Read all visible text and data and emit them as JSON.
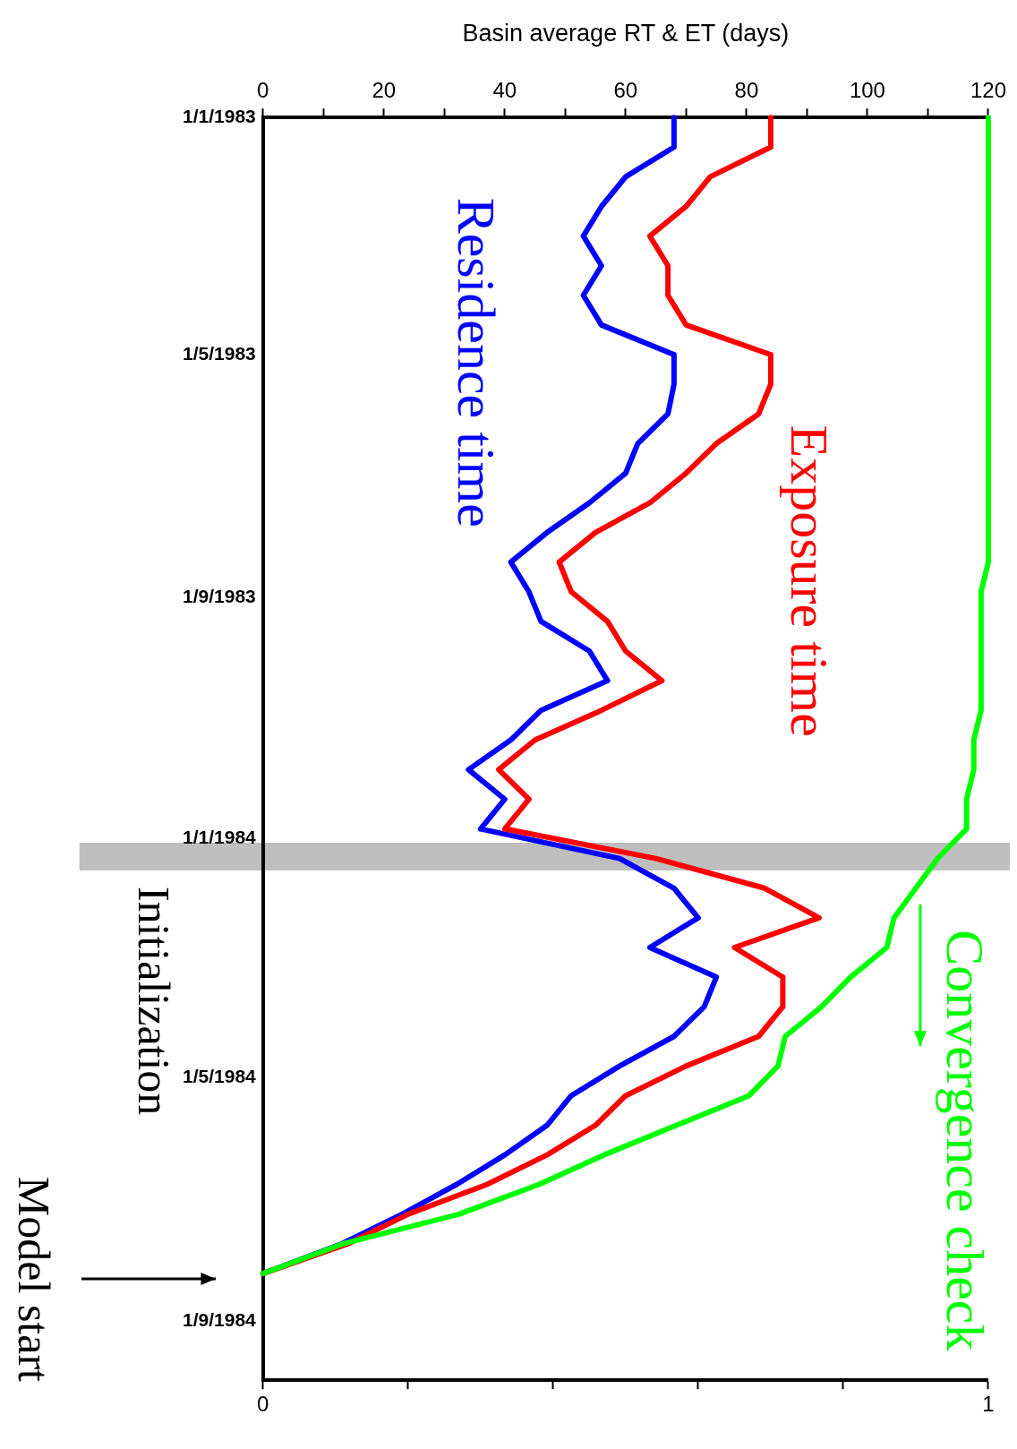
{
  "chart_data": {
    "type": "line",
    "orientation": "horizontal",
    "xlabel": "Basin average RT & ET (days)",
    "x": [
      "1983-01-01",
      "1983-01-16",
      "1983-01-31",
      "1983-02-15",
      "1983-03-02",
      "1983-03-17",
      "1983-04-01",
      "1983-04-16",
      "1983-05-01",
      "1983-05-16",
      "1983-05-31",
      "1983-06-15",
      "1983-06-30",
      "1983-07-15",
      "1983-07-30",
      "1983-08-14",
      "1983-08-29",
      "1983-09-13",
      "1983-09-28",
      "1983-10-13",
      "1983-10-28",
      "1983-11-12",
      "1983-11-27",
      "1983-12-12",
      "1983-12-27",
      "1984-01-11",
      "1984-01-26",
      "1984-02-10",
      "1984-02-25",
      "1984-03-11",
      "1984-03-26",
      "1984-04-10",
      "1984-04-25",
      "1984-05-10",
      "1984-05-25",
      "1984-06-09",
      "1984-06-24",
      "1984-07-09",
      "1984-07-24",
      "1984-08-08"
    ],
    "ylim": [
      "1984-10-01",
      "1983-01-01"
    ],
    "yticks": [
      {
        "value": "1983-01-01",
        "label": "1/1/1983"
      },
      {
        "value": "1983-05-01",
        "label": "1/5/1983"
      },
      {
        "value": "1983-09-01",
        "label": "1/9/1983"
      },
      {
        "value": "1984-01-01",
        "label": "1/1/1984"
      },
      {
        "value": "1984-05-01",
        "label": "1/5/1984"
      },
      {
        "value": "1984-09-01",
        "label": "1/9/1984"
      }
    ],
    "xlim": [
      0,
      120
    ],
    "xticks": [
      0,
      {
        "value": 10,
        "label": null
      },
      20,
      {
        "value": 30,
        "label": null
      },
      40,
      {
        "value": 50,
        "label": null
      },
      60,
      {
        "value": 70,
        "label": null
      },
      80,
      {
        "value": 90,
        "label": null
      },
      100,
      {
        "value": 110,
        "label": null
      },
      120
    ],
    "x2lim": [
      0,
      1
    ],
    "x2ticks": [
      0,
      {
        "value": 0.2,
        "label": null
      },
      {
        "value": 0.4,
        "label": null
      },
      {
        "value": 0.6,
        "label": null
      },
      {
        "value": 0.8,
        "label": null
      },
      1
    ],
    "series": [
      {
        "name": "Residence time",
        "color": "#0000ff",
        "values": [
          68,
          68,
          60,
          56,
          53,
          56,
          53,
          56,
          68,
          68,
          67,
          62,
          60,
          54,
          47,
          41,
          44,
          46,
          54,
          57,
          46,
          41,
          34,
          40,
          36,
          59,
          68,
          72,
          64,
          75,
          73,
          68,
          59,
          51,
          47,
          40,
          32,
          23,
          13,
          0
        ]
      },
      {
        "name": "Exposure time",
        "color": "#ff0000",
        "values": [
          84,
          84,
          74,
          70,
          64,
          67,
          67,
          70,
          84,
          84,
          82,
          75,
          70,
          64,
          55,
          49,
          51,
          57,
          60,
          66,
          56,
          45,
          39,
          44,
          40,
          65,
          83,
          92,
          78,
          86,
          86,
          82,
          70,
          60,
          55,
          47,
          37,
          24,
          14,
          0
        ]
      },
      {
        "name": "Convergence check",
        "color": "#00ff00",
        "axis": "x2",
        "values": [
          1,
          1,
          1,
          1,
          1,
          1,
          1,
          1,
          1,
          1,
          1,
          1,
          1,
          1,
          1,
          1,
          0.99,
          0.99,
          0.99,
          0.99,
          0.99,
          0.98,
          0.98,
          0.97,
          0.97,
          0.93,
          0.9,
          0.87,
          0.86,
          0.81,
          0.77,
          0.72,
          0.71,
          0.67,
          0.57,
          0.47,
          0.38,
          0.27,
          0.11,
          0
        ]
      }
    ],
    "bands": [
      {
        "axis": "y",
        "from": "1984-01-03",
        "to": "1984-01-17",
        "label": "Initialization",
        "color": "#bebebe"
      }
    ],
    "annotations": [
      "Model start"
    ],
    "grid": false,
    "legend": false,
    "marker": "none",
    "line_style": "solid"
  }
}
